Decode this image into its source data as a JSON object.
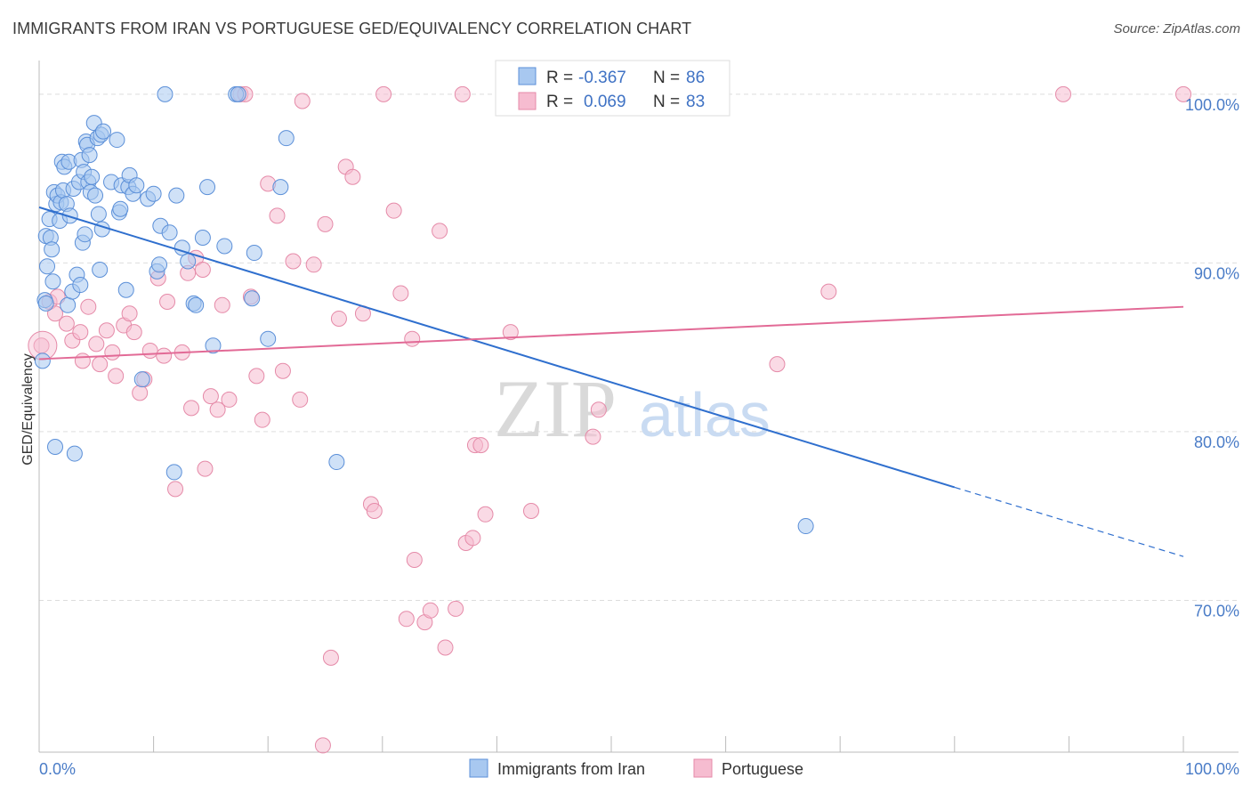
{
  "title": "IMMIGRANTS FROM IRAN VS PORTUGUESE GED/EQUIVALENCY CORRELATION CHART",
  "source": "Source: ZipAtlas.com",
  "watermark": {
    "zip": "ZIP",
    "atlas": "atlas"
  },
  "colors": {
    "iran_fill": "#a8c8f0",
    "iran_stroke": "#5b8fd8",
    "iran_line": "#2f6fce",
    "port_fill": "#f6bcd0",
    "port_stroke": "#e58aa8",
    "port_line": "#e26a96",
    "tick_text": "#4a7cc7",
    "grid": "#dddddd"
  },
  "legend_box": {
    "rows": [
      {
        "r_label": "R =",
        "r_value": "-0.367",
        "n_label": "N =",
        "n_value": "86"
      },
      {
        "r_label": "R =",
        "r_value": "0.069",
        "n_label": "N =",
        "n_value": "83"
      }
    ]
  },
  "bottom_legend": {
    "items": [
      "Immigrants from Iran",
      "Portuguese"
    ]
  },
  "chart_data": {
    "type": "scatter",
    "title": "IMMIGRANTS FROM IRAN VS PORTUGUESE GED/EQUIVALENCY CORRELATION CHART",
    "xlabel": "",
    "ylabel": "GED/Equivalency",
    "xlim": [
      0,
      100
    ],
    "ylim": [
      61,
      102
    ],
    "x_tick_labels": [
      "0.0%",
      "100.0%"
    ],
    "y_ticks": [
      70,
      80,
      90,
      100
    ],
    "y_tick_labels": [
      "70.0%",
      "80.0%",
      "90.0%",
      "100.0%"
    ],
    "grid": true,
    "legend_position": "top-center",
    "series": [
      {
        "name": "Immigrants from Iran",
        "r": -0.367,
        "n": 86,
        "trend": {
          "x0": 0,
          "y0": 93.3,
          "x1": 80,
          "y1": 76.7,
          "dash_to_x": 100,
          "dash_to_y": 72.6
        },
        "points": [
          [
            0.3,
            84.2
          ],
          [
            0.5,
            87.8
          ],
          [
            0.6,
            87.6
          ],
          [
            0.6,
            91.6
          ],
          [
            0.7,
            89.8
          ],
          [
            0.9,
            92.6
          ],
          [
            1.0,
            91.5
          ],
          [
            1.1,
            90.8
          ],
          [
            1.2,
            88.9
          ],
          [
            1.3,
            94.2
          ],
          [
            1.4,
            79.1
          ],
          [
            1.5,
            93.5
          ],
          [
            1.6,
            94.0
          ],
          [
            1.8,
            92.5
          ],
          [
            1.9,
            93.6
          ],
          [
            2.0,
            96.0
          ],
          [
            2.1,
            94.3
          ],
          [
            2.2,
            95.7
          ],
          [
            2.4,
            93.5
          ],
          [
            2.5,
            87.5
          ],
          [
            2.6,
            96.0
          ],
          [
            2.7,
            92.8
          ],
          [
            2.9,
            88.3
          ],
          [
            3.0,
            94.4
          ],
          [
            3.1,
            78.7
          ],
          [
            3.3,
            89.3
          ],
          [
            3.5,
            94.8
          ],
          [
            3.6,
            88.7
          ],
          [
            3.7,
            96.1
          ],
          [
            3.8,
            91.2
          ],
          [
            3.9,
            95.4
          ],
          [
            4.0,
            91.7
          ],
          [
            4.1,
            97.2
          ],
          [
            4.2,
            97.0
          ],
          [
            4.3,
            94.8
          ],
          [
            4.4,
            96.4
          ],
          [
            4.5,
            94.2
          ],
          [
            4.6,
            95.1
          ],
          [
            4.8,
            98.3
          ],
          [
            4.9,
            94.0
          ],
          [
            5.1,
            97.4
          ],
          [
            5.2,
            92.9
          ],
          [
            5.3,
            89.6
          ],
          [
            5.4,
            97.6
          ],
          [
            5.5,
            92.0
          ],
          [
            5.6,
            97.8
          ],
          [
            6.3,
            94.8
          ],
          [
            6.8,
            97.3
          ],
          [
            7.0,
            93.0
          ],
          [
            7.1,
            93.2
          ],
          [
            7.2,
            94.6
          ],
          [
            7.6,
            88.4
          ],
          [
            7.8,
            94.5
          ],
          [
            7.9,
            95.2
          ],
          [
            8.2,
            94.1
          ],
          [
            8.5,
            94.6
          ],
          [
            9.0,
            83.1
          ],
          [
            9.5,
            93.8
          ],
          [
            10.0,
            94.1
          ],
          [
            10.3,
            89.5
          ],
          [
            10.5,
            89.9
          ],
          [
            10.6,
            92.2
          ],
          [
            11.0,
            100.0
          ],
          [
            11.4,
            91.8
          ],
          [
            11.8,
            77.6
          ],
          [
            12.0,
            94.0
          ],
          [
            12.5,
            90.9
          ],
          [
            13.0,
            90.1
          ],
          [
            13.5,
            87.6
          ],
          [
            13.7,
            87.5
          ],
          [
            14.3,
            91.5
          ],
          [
            14.7,
            94.5
          ],
          [
            15.2,
            85.1
          ],
          [
            16.2,
            91.0
          ],
          [
            17.2,
            100.0
          ],
          [
            17.4,
            100.0
          ],
          [
            18.6,
            87.9
          ],
          [
            18.8,
            90.6
          ],
          [
            20.0,
            85.5
          ],
          [
            21.1,
            94.5
          ],
          [
            21.6,
            97.4
          ],
          [
            26.0,
            78.2
          ],
          [
            67.0,
            74.4
          ]
        ]
      },
      {
        "name": "Portuguese",
        "r": 0.069,
        "n": 83,
        "trend": {
          "x0": 0,
          "y0": 84.3,
          "x1": 100,
          "y1": 87.4
        },
        "points": [
          [
            0.2,
            85.1
          ],
          [
            0.9,
            87.7
          ],
          [
            1.4,
            87.0
          ],
          [
            1.6,
            88.0
          ],
          [
            2.4,
            86.4
          ],
          [
            2.9,
            85.4
          ],
          [
            3.6,
            85.9
          ],
          [
            3.8,
            84.2
          ],
          [
            4.3,
            87.4
          ],
          [
            5.0,
            85.2
          ],
          [
            5.3,
            84.0
          ],
          [
            5.9,
            86.0
          ],
          [
            6.4,
            84.7
          ],
          [
            6.7,
            83.3
          ],
          [
            7.4,
            86.3
          ],
          [
            7.9,
            87.0
          ],
          [
            8.3,
            85.9
          ],
          [
            8.8,
            82.3
          ],
          [
            9.2,
            83.1
          ],
          [
            9.7,
            84.8
          ],
          [
            10.4,
            89.1
          ],
          [
            10.9,
            84.5
          ],
          [
            11.2,
            87.7
          ],
          [
            11.9,
            76.6
          ],
          [
            12.5,
            84.7
          ],
          [
            13.0,
            89.4
          ],
          [
            13.3,
            81.4
          ],
          [
            13.7,
            90.3
          ],
          [
            14.3,
            89.6
          ],
          [
            14.5,
            77.8
          ],
          [
            15.0,
            82.1
          ],
          [
            15.6,
            81.3
          ],
          [
            16.0,
            87.5
          ],
          [
            16.6,
            81.9
          ],
          [
            17.6,
            100.0
          ],
          [
            18.0,
            100.0
          ],
          [
            18.5,
            88.0
          ],
          [
            19.0,
            83.3
          ],
          [
            19.5,
            80.7
          ],
          [
            20.0,
            94.7
          ],
          [
            20.8,
            92.8
          ],
          [
            21.3,
            83.6
          ],
          [
            22.2,
            90.1
          ],
          [
            22.8,
            81.9
          ],
          [
            23.0,
            99.6
          ],
          [
            24.0,
            89.9
          ],
          [
            25.0,
            92.3
          ],
          [
            25.5,
            66.6
          ],
          [
            26.2,
            86.7
          ],
          [
            26.8,
            95.7
          ],
          [
            27.4,
            95.1
          ],
          [
            28.3,
            87.0
          ],
          [
            29.0,
            75.7
          ],
          [
            29.3,
            75.3
          ],
          [
            30.1,
            100.0
          ],
          [
            31.0,
            93.1
          ],
          [
            31.6,
            88.2
          ],
          [
            32.1,
            68.9
          ],
          [
            32.6,
            85.5
          ],
          [
            32.8,
            72.4
          ],
          [
            33.7,
            68.7
          ],
          [
            34.2,
            69.4
          ],
          [
            35.0,
            91.9
          ],
          [
            35.5,
            67.2
          ],
          [
            36.4,
            69.5
          ],
          [
            37.0,
            100.0
          ],
          [
            37.3,
            73.4
          ],
          [
            37.9,
            73.7
          ],
          [
            38.1,
            79.2
          ],
          [
            38.6,
            79.2
          ],
          [
            39.0,
            75.1
          ],
          [
            41.2,
            85.9
          ],
          [
            43.0,
            75.3
          ],
          [
            48.4,
            79.7
          ],
          [
            48.9,
            81.3
          ],
          [
            64.5,
            84.0
          ],
          [
            69.0,
            88.3
          ],
          [
            89.5,
            100.0
          ],
          [
            100.0,
            100.0
          ],
          [
            24.8,
            61.4
          ]
        ]
      }
    ]
  }
}
